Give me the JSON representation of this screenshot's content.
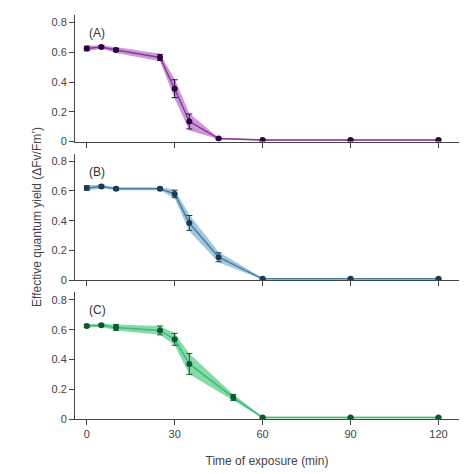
{
  "chart_data": [
    {
      "type": "line",
      "title": "(A)",
      "x": [
        0,
        5,
        10,
        25,
        30,
        35,
        45,
        60,
        90,
        120
      ],
      "series": [
        {
          "type": "band",
          "color": "#CC99D8",
          "upper": [
            0.645,
            0.645,
            0.635,
            0.59,
            0.42,
            0.19,
            0.025,
            0.015,
            0.015,
            0.015
          ],
          "lower": [
            0.605,
            0.625,
            0.595,
            0.54,
            0.29,
            0.075,
            0.015,
            0.005,
            0.005,
            0.005
          ]
        },
        {
          "type": "line",
          "color": "#8B3A9A",
          "values": [
            0.625,
            0.635,
            0.615,
            0.565,
            0.355,
            0.135,
            0.02,
            0.01,
            0.01,
            0.01
          ]
        },
        {
          "type": "scatter",
          "color": "#2D0040",
          "marker": "circle",
          "values": [
            0.625,
            0.635,
            0.615,
            0.565,
            0.355,
            0.135,
            0.02,
            0.01,
            0.01,
            0.01
          ],
          "error": [
            0.015,
            0.01,
            0.01,
            0.02,
            0.06,
            0.05,
            0.005,
            0.005,
            0.005,
            0.005
          ]
        }
      ],
      "xlim": [
        -4,
        127
      ],
      "xticks": [
        0,
        30,
        60,
        90,
        120
      ],
      "ylim": [
        0.0,
        0.85
      ],
      "yticks": [
        0.0,
        0.2,
        0.4,
        0.6,
        0.8
      ],
      "grid": false,
      "tick_labels": "y"
    },
    {
      "type": "line",
      "title": "(B)",
      "ylabel": "Effective quantum yield (ΔFv/Fm’)",
      "x": [
        0,
        5,
        10,
        25,
        30,
        35,
        45,
        60,
        90,
        120
      ],
      "series": [
        {
          "type": "band",
          "color": "#A0C8DC",
          "upper": [
            0.64,
            0.64,
            0.625,
            0.625,
            0.61,
            0.44,
            0.19,
            0.015,
            0.015,
            0.015
          ],
          "lower": [
            0.6,
            0.62,
            0.605,
            0.605,
            0.55,
            0.33,
            0.12,
            0.005,
            0.005,
            0.005
          ]
        },
        {
          "type": "line",
          "color": "#4A7FA5",
          "values": [
            0.62,
            0.63,
            0.615,
            0.615,
            0.58,
            0.385,
            0.155,
            0.01,
            0.01,
            0.01
          ]
        },
        {
          "type": "scatter",
          "color": "#1A3A5A",
          "marker": "circle",
          "values": [
            0.62,
            0.63,
            0.615,
            0.615,
            0.58,
            0.385,
            0.155,
            0.01,
            0.01,
            0.01
          ],
          "error": [
            0.015,
            0.01,
            0.01,
            0.01,
            0.025,
            0.05,
            0.03,
            0.005,
            0.005,
            0.005
          ]
        }
      ],
      "xlim": [
        -4,
        127
      ],
      "xticks": [
        0,
        30,
        60,
        90,
        120
      ],
      "ylim": [
        0.0,
        0.85
      ],
      "yticks": [
        0.0,
        0.2,
        0.4,
        0.6,
        0.8
      ],
      "grid": false,
      "tick_labels": "y"
    },
    {
      "type": "line",
      "title": "(C)",
      "xlabel": "Time of exposure (min)",
      "x": [
        0,
        5,
        10,
        25,
        30,
        35,
        50,
        60,
        90,
        120
      ],
      "series": [
        {
          "type": "band",
          "color": "#88D8AA",
          "upper": [
            0.635,
            0.64,
            0.635,
            0.625,
            0.575,
            0.44,
            0.165,
            0.015,
            0.015,
            0.015
          ],
          "lower": [
            0.615,
            0.62,
            0.595,
            0.565,
            0.495,
            0.3,
            0.125,
            0.005,
            0.005,
            0.005
          ]
        },
        {
          "type": "line",
          "color": "#3DBB7A",
          "values": [
            0.625,
            0.63,
            0.615,
            0.595,
            0.535,
            0.37,
            0.145,
            0.01,
            0.01,
            0.01
          ]
        },
        {
          "type": "scatter",
          "color": "#0A5A30",
          "marker": "circle",
          "values": [
            0.625,
            0.63,
            0.615,
            0.595,
            0.535,
            0.37,
            0.145,
            0.01,
            0.01,
            0.01
          ],
          "error": [
            0.01,
            0.01,
            0.02,
            0.03,
            0.04,
            0.07,
            0.02,
            0.005,
            0.005,
            0.005
          ]
        }
      ],
      "xlim": [
        -4,
        127
      ],
      "xticks": [
        0,
        30,
        60,
        90,
        120
      ],
      "ylim": [
        0.0,
        0.85
      ],
      "yticks": [
        0.0,
        0.2,
        0.4,
        0.6,
        0.8
      ],
      "grid": false
    }
  ]
}
